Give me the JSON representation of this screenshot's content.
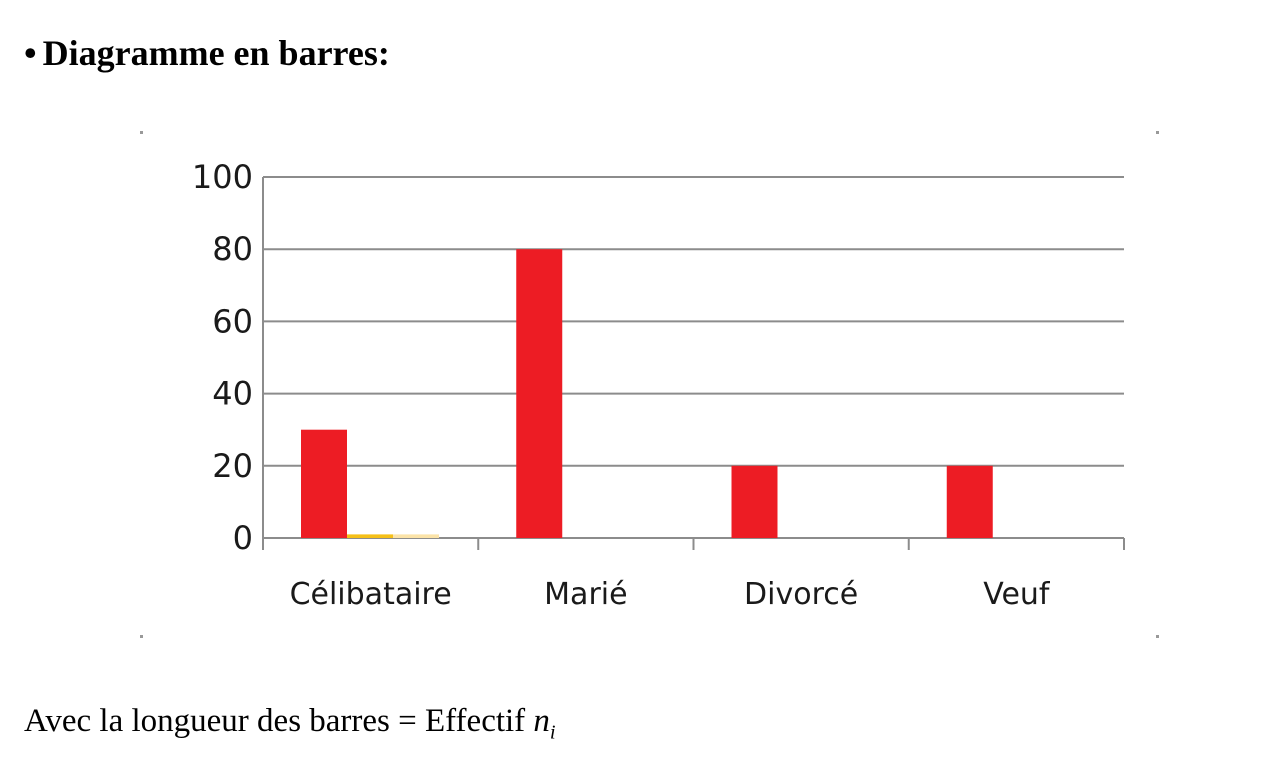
{
  "heading": {
    "bullet": "•",
    "text": "Diagramme en barres:"
  },
  "chart_data": {
    "type": "bar",
    "categories": [
      "Célibataire",
      "Marié",
      "Divorcé",
      "Veuf"
    ],
    "series": [
      {
        "values": [
          30,
          80,
          20,
          20
        ],
        "color": "#ED1C24"
      },
      {
        "values": [
          1,
          0,
          0,
          0
        ],
        "color": "#F5C018"
      },
      {
        "values": [
          1,
          0,
          0,
          0
        ],
        "color": "#FBE3A8"
      }
    ],
    "title": "",
    "xlabel": "",
    "ylabel": "",
    "ylim": [
      0,
      100
    ],
    "yticks": [
      0,
      20,
      40,
      60,
      80,
      100
    ],
    "grid": true,
    "grid_color": "#8c8c8c",
    "axis_color": "#8c8c8c"
  },
  "caption": {
    "text": "Avec la longueur des barres = Effectif ",
    "math_var": "n",
    "math_sub": "i"
  }
}
